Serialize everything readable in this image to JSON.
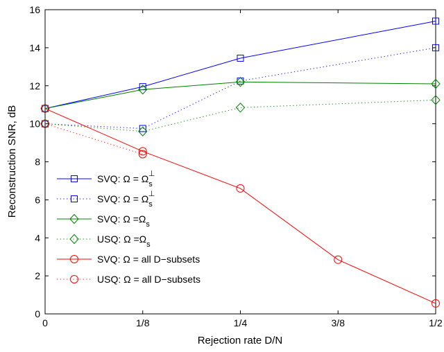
{
  "chart_data": {
    "type": "line",
    "x": [
      0,
      0.125,
      0.25,
      0.375,
      0.5
    ],
    "x_tick_labels": [
      "0",
      "1/8",
      "1/4",
      "3/8",
      "1/2"
    ],
    "y_ticks": [
      0,
      2,
      4,
      6,
      8,
      10,
      12,
      14,
      16
    ],
    "xlim": [
      0,
      0.5
    ],
    "ylim": [
      0,
      16
    ],
    "xlabel": "Rejection rate D/N",
    "ylabel": "Reconstruction SNR, dB",
    "grid": false,
    "legend_position": "left",
    "series": [
      {
        "name": "SVQ: Ω = Ω",
        "name_sub": "s",
        "name_sup": "⊥",
        "color": "#0000ff",
        "dash": "solid",
        "marker": "square",
        "points": [
          [
            0,
            10.8
          ],
          [
            0.125,
            11.95
          ],
          [
            0.25,
            13.45
          ],
          [
            0.5,
            15.4
          ]
        ]
      },
      {
        "name": "SVQ: Ω = Ω",
        "name_sub": "s",
        "name_sup": "⊥",
        "color": "#0000ff",
        "dash": "dotted",
        "marker": "square",
        "points": [
          [
            0,
            10.0
          ],
          [
            0.125,
            9.75
          ],
          [
            0.25,
            12.25
          ],
          [
            0.5,
            14.0
          ]
        ]
      },
      {
        "name": "SVQ: Ω =Ω",
        "name_sub": "s",
        "name_sup": "",
        "color": "#008000",
        "dash": "solid",
        "marker": "diamond",
        "points": [
          [
            0,
            10.8
          ],
          [
            0.125,
            11.8
          ],
          [
            0.25,
            12.2
          ],
          [
            0.5,
            12.1
          ]
        ]
      },
      {
        "name": "USQ: Ω =Ω",
        "name_sub": "s",
        "name_sup": "",
        "color": "#008000",
        "dash": "dotted",
        "marker": "diamond",
        "points": [
          [
            0,
            10.0
          ],
          [
            0.125,
            9.6
          ],
          [
            0.25,
            10.85
          ],
          [
            0.5,
            11.25
          ]
        ]
      },
      {
        "name": "SVQ: Ω = all D−subsets",
        "name_sub": "",
        "name_sup": "",
        "color": "#ff0000",
        "dash": "solid",
        "marker": "circle",
        "points": [
          [
            0,
            10.8
          ],
          [
            0.125,
            8.55
          ],
          [
            0.25,
            6.6
          ],
          [
            0.375,
            2.85
          ],
          [
            0.5,
            0.55
          ]
        ]
      },
      {
        "name": "USQ: Ω = all D−subsets",
        "name_sub": "",
        "name_sup": "",
        "color": "#ff0000",
        "dash": "dotted",
        "marker": "circle",
        "points": [
          [
            0,
            10.0
          ],
          [
            0.125,
            8.4
          ]
        ]
      }
    ]
  }
}
